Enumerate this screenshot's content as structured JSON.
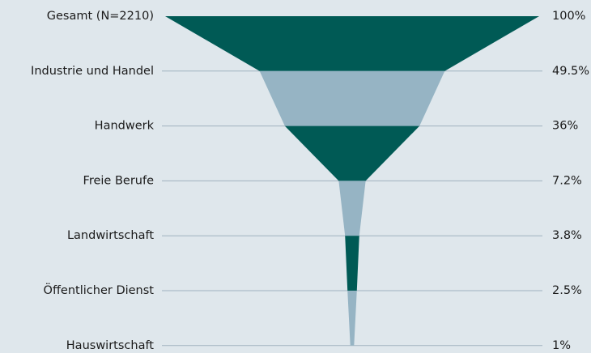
{
  "chart_data": {
    "type": "funnel",
    "categories": [
      "Gesamt (N=2210)",
      "Industrie und Handel",
      "Handwerk",
      "Freie Berufe",
      "Landwirtschaft",
      "Öffentlicher Dienst",
      "Hauswirtschaft"
    ],
    "values": [
      100,
      49.5,
      36,
      7.2,
      3.8,
      2.5,
      1
    ],
    "value_labels": [
      "100%",
      "49.5%",
      "36%",
      "7.2%",
      "3.8%",
      "2.5%",
      "1%"
    ],
    "colors": [
      "#005a55",
      "#96b4c4"
    ]
  }
}
